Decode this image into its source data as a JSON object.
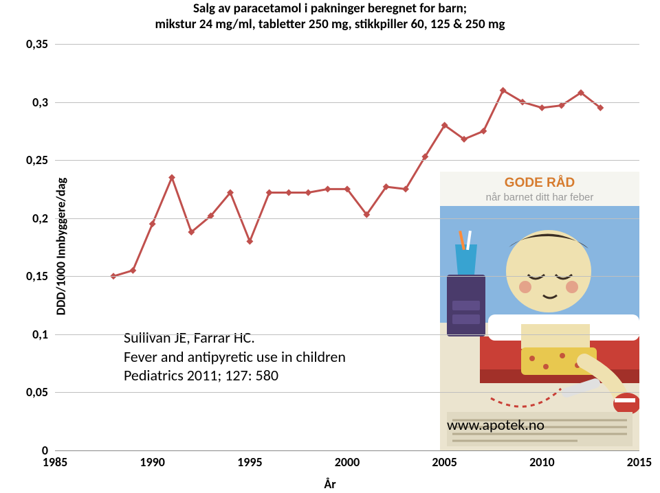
{
  "chart": {
    "type": "line",
    "title_line1": "Salg av paracetamol i pakninger beregnet for barn;",
    "title_line2": "mikstur 24 mg/ml, tabletter 250 mg, stikkpiller 60, 125 & 250 mg",
    "title_fontsize": 19,
    "title_color": "#000000",
    "ylabel": "DDD/1000 Innbyggere/dag",
    "ylabel_fontsize": 18,
    "ylabel_color": "#000000",
    "xlabel": "År",
    "xlabel_fontsize": 18,
    "xlabel_color": "#000000",
    "xlim": [
      1985,
      2015
    ],
    "ylim": [
      0,
      0.35
    ],
    "xticks": [
      1985,
      1990,
      1995,
      2000,
      2005,
      2010,
      2015
    ],
    "yticks": [
      0,
      0.05,
      0.1,
      0.15,
      0.2,
      0.25,
      0.3,
      0.35
    ],
    "ytick_labels": [
      "0",
      "0,05",
      "0,1",
      "0,15",
      "0,2",
      "0,25",
      "0,3",
      "0,35"
    ],
    "gridline_color": "#bfbfbf",
    "tick_fontsize": 18,
    "series": {
      "color": "#c0504d",
      "line_width": 3,
      "marker_style": "diamond",
      "marker_size": 10,
      "marker_color": "#c0504d",
      "x": [
        1988,
        1989,
        1990,
        1991,
        1992,
        1993,
        1994,
        1995,
        1996,
        1997,
        1998,
        1999,
        2000,
        2001,
        2002,
        2003,
        2004,
        2005,
        2006,
        2007,
        2008,
        2009,
        2010,
        2011,
        2012,
        2013
      ],
      "y": [
        0.15,
        0.155,
        0.195,
        0.235,
        0.188,
        0.202,
        0.222,
        0.18,
        0.222,
        0.222,
        0.222,
        0.225,
        0.225,
        0.203,
        0.227,
        0.225,
        0.253,
        0.28,
        0.268,
        0.275,
        0.31,
        0.3,
        0.295,
        0.297,
        0.308,
        0.295
      ]
    }
  },
  "annotations": {
    "ref1": "Sullivan JE, Farrar HC.",
    "ref2": "Fever and antipyretic use in children",
    "ref3": "Pediatrics 2011; 127: 580",
    "ref_fontsize": 22,
    "ref_color": "#000000",
    "website": "www.apotek.no",
    "website_fontsize": 22,
    "website_color": "#000000"
  },
  "illustration": {
    "header_label": "GODE RÅD",
    "header_sub": "når barnet ditt har feber",
    "header_color": "#d67b2e",
    "sub_color": "#9a9a9a",
    "header_bg": "#f5f5f0",
    "background_top": "#88b6e0",
    "background_bottom": "#ebe4cf",
    "cup_color": "#38a3d1",
    "bed_color": "#c93f36",
    "blanket_color": "#ffffff",
    "table_color": "#4a3b6b",
    "skin_color": "#efe1b0",
    "shorts_color": "#e8c84f",
    "sock_color": "#c93f36",
    "sock_stripe": "#ffffff",
    "thermo_color": "#e0e0e0"
  }
}
